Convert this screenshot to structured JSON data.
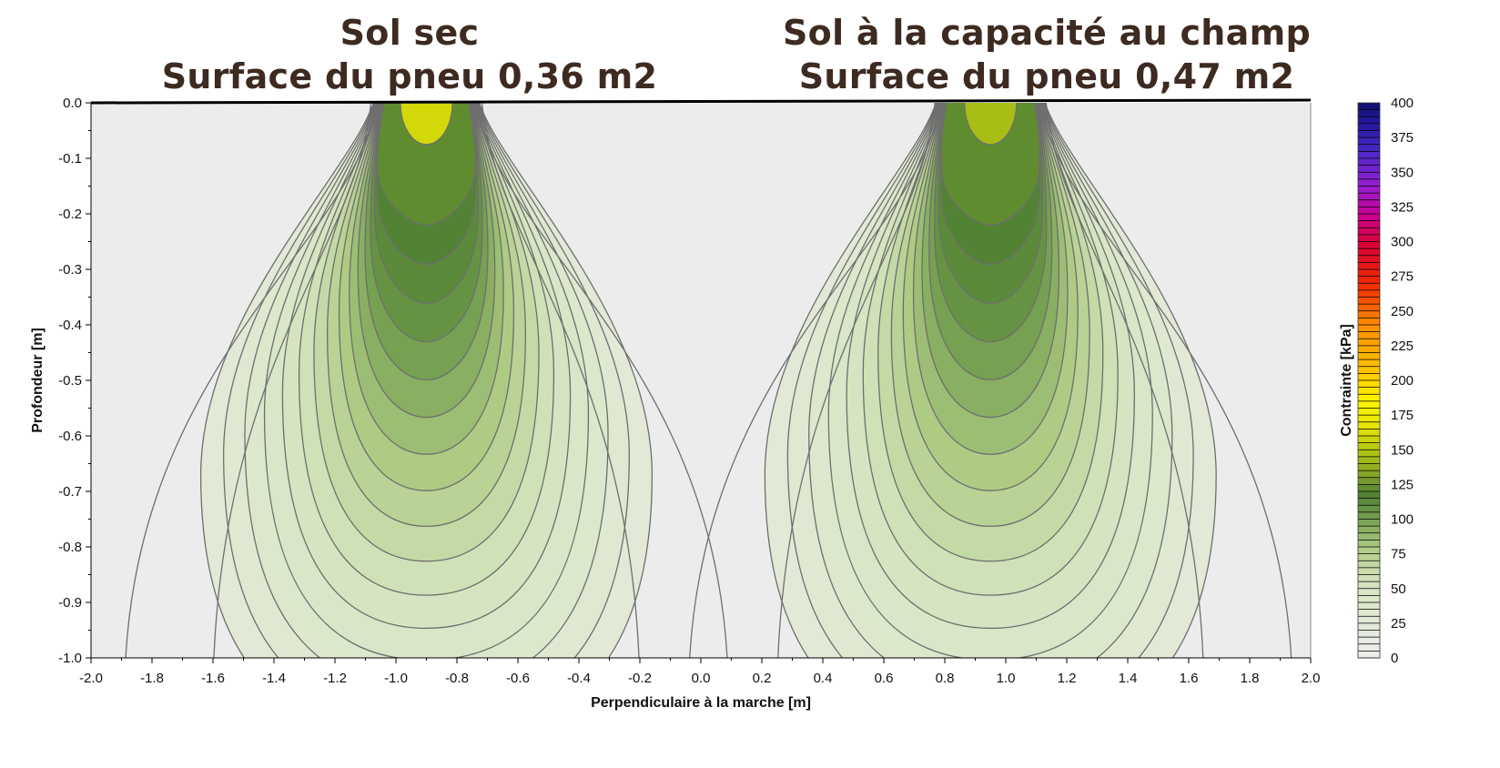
{
  "panel_titles": [
    {
      "line1": "Sol sec",
      "line2": "Surface du pneu 0,36 m2"
    },
    {
      "line1": "Sol à la capacité au champ",
      "line2": "Surface du pneu 0,47 m2"
    }
  ],
  "chart_data": {
    "type": "heatmap",
    "title": "",
    "xlabel": "Perpendiculaire à la marche [m]",
    "ylabel": "Profondeur [m]",
    "xlim": [
      -2.0,
      2.0
    ],
    "ylim": [
      -1.0,
      0.0
    ],
    "x_ticks": [
      "-2.0",
      "-1.8",
      "-1.6",
      "-1.4",
      "-1.2",
      "-1.0",
      "-0.8",
      "-0.6",
      "-0.4",
      "-0.2",
      "0.0",
      "0.2",
      "0.4",
      "0.6",
      "0.8",
      "1.0",
      "1.2",
      "1.4",
      "1.6",
      "1.8",
      "2.0"
    ],
    "y_ticks": [
      "0.0",
      "-0.1",
      "-0.2",
      "-0.3",
      "-0.4",
      "-0.5",
      "-0.6",
      "-0.7",
      "-0.8",
      "-0.9",
      "-1.0"
    ],
    "colorbar": {
      "label": "Contrainte [kPa]",
      "min": 0,
      "max": 400,
      "step": 5,
      "ticks": [
        "400",
        "375",
        "350",
        "325",
        "300",
        "275",
        "250",
        "225",
        "200",
        "175",
        "150",
        "125",
        "100",
        "75",
        "50",
        "25",
        "0"
      ]
    },
    "series": [
      {
        "center_x": -0.9,
        "surface_max_kpa": 160,
        "max_kpa": 122,
        "depth_of_max_m": -0.22
      },
      {
        "center_x": 0.95,
        "surface_max_kpa": 145,
        "max_kpa": 112,
        "depth_of_max_m": -0.17
      }
    ]
  },
  "colors": {
    "background": "#ececec",
    "contour": "#6e6e6e",
    "title": "#3d2a20"
  }
}
